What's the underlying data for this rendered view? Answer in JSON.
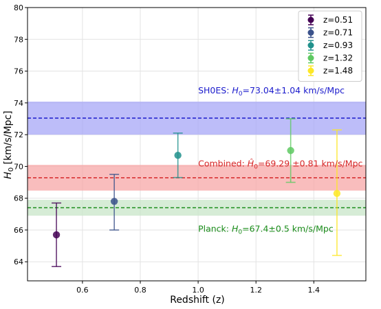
{
  "chart_data": {
    "type": "scatter",
    "xlabel": "Redshift (z)",
    "ylabel_main": "H",
    "ylabel_sub": "0",
    "ylabel_rest": " [km/s/Mpc]",
    "xlim": [
      0.41,
      1.58
    ],
    "ylim": [
      62.8,
      80
    ],
    "xticks": [
      0.6,
      0.8,
      1.0,
      1.2,
      1.4
    ],
    "xtick_labels": [
      "0.6",
      "0.8",
      "1.0",
      "1.2",
      "1.4"
    ],
    "yticks": [
      64,
      66,
      68,
      70,
      72,
      74,
      76,
      78,
      80
    ],
    "ytick_labels": [
      "64",
      "66",
      "68",
      "70",
      "72",
      "74",
      "76",
      "78",
      "80"
    ],
    "grid": true,
    "legend_position": "top-right",
    "series": [
      {
        "name": "z=0.51",
        "x": 0.51,
        "y": 65.7,
        "yerr_low": 63.7,
        "yerr_high": 67.7,
        "color": "#440154"
      },
      {
        "name": "z=0.71",
        "x": 0.71,
        "y": 67.8,
        "yerr_low": 66.0,
        "yerr_high": 69.5,
        "color": "#3b528b"
      },
      {
        "name": "z=0.93",
        "x": 0.93,
        "y": 70.7,
        "yerr_low": 69.3,
        "yerr_high": 72.1,
        "color": "#21918c"
      },
      {
        "name": "z=1.32",
        "x": 1.32,
        "y": 71.0,
        "yerr_low": 69.0,
        "yerr_high": 73.0,
        "color": "#5ec962"
      },
      {
        "name": "z=1.48",
        "x": 1.48,
        "y": 68.3,
        "yerr_low": 64.4,
        "yerr_high": 72.3,
        "color": "#fde725"
      }
    ],
    "bands": [
      {
        "id": "shoes",
        "center": 73.04,
        "low": 72.0,
        "high": 74.08,
        "line_color": "#1a1acc",
        "fill_color": "#a7a7f7",
        "label_prefix": "SH0ES: ",
        "label_sym": "H",
        "label_sub": "0",
        "label_value": "=73.04±1.04 km/s/Mpc",
        "label_x": 1.0,
        "label_y": 74.6
      },
      {
        "id": "combined",
        "center": 69.29,
        "low": 68.48,
        "high": 70.1,
        "line_color": "#d62728",
        "fill_color": "#f7a7a7",
        "label_prefix": "Combined: ",
        "label_sym": "Ĥ",
        "label_sub": "0",
        "label_value": "=69.29 ±0.81 km/s/Mpc",
        "label_x": 1.0,
        "label_y": 70.0
      },
      {
        "id": "planck",
        "center": 67.4,
        "low": 66.9,
        "high": 67.9,
        "line_color": "#1a8c1a",
        "fill_color": "#c8e6c8",
        "label_prefix": "Planck: ",
        "label_sym": "H",
        "label_sub": "0",
        "label_value": "=67.4±0.5 km/s/Mpc",
        "label_x": 1.0,
        "label_y": 65.9
      }
    ]
  }
}
